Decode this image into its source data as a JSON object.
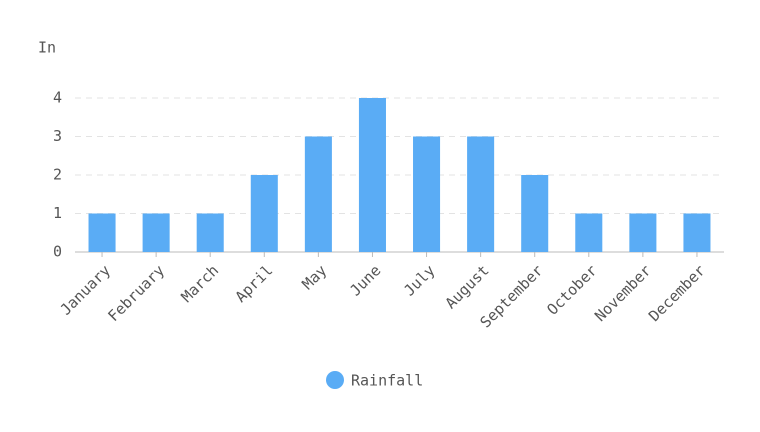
{
  "chart_data": {
    "type": "bar",
    "y_label": "In",
    "categories": [
      "January",
      "February",
      "March",
      "April",
      "May",
      "June",
      "July",
      "August",
      "September",
      "October",
      "November",
      "December"
    ],
    "series": [
      {
        "name": "Rainfall",
        "color": "#5aacf5",
        "values": [
          1,
          1,
          1,
          2,
          3,
          4,
          3,
          3,
          2,
          1,
          1,
          1
        ]
      }
    ],
    "ylim": [
      0,
      4
    ],
    "yticks": [
      0,
      1,
      2,
      3,
      4
    ],
    "grid": true,
    "legend": "bottom"
  }
}
